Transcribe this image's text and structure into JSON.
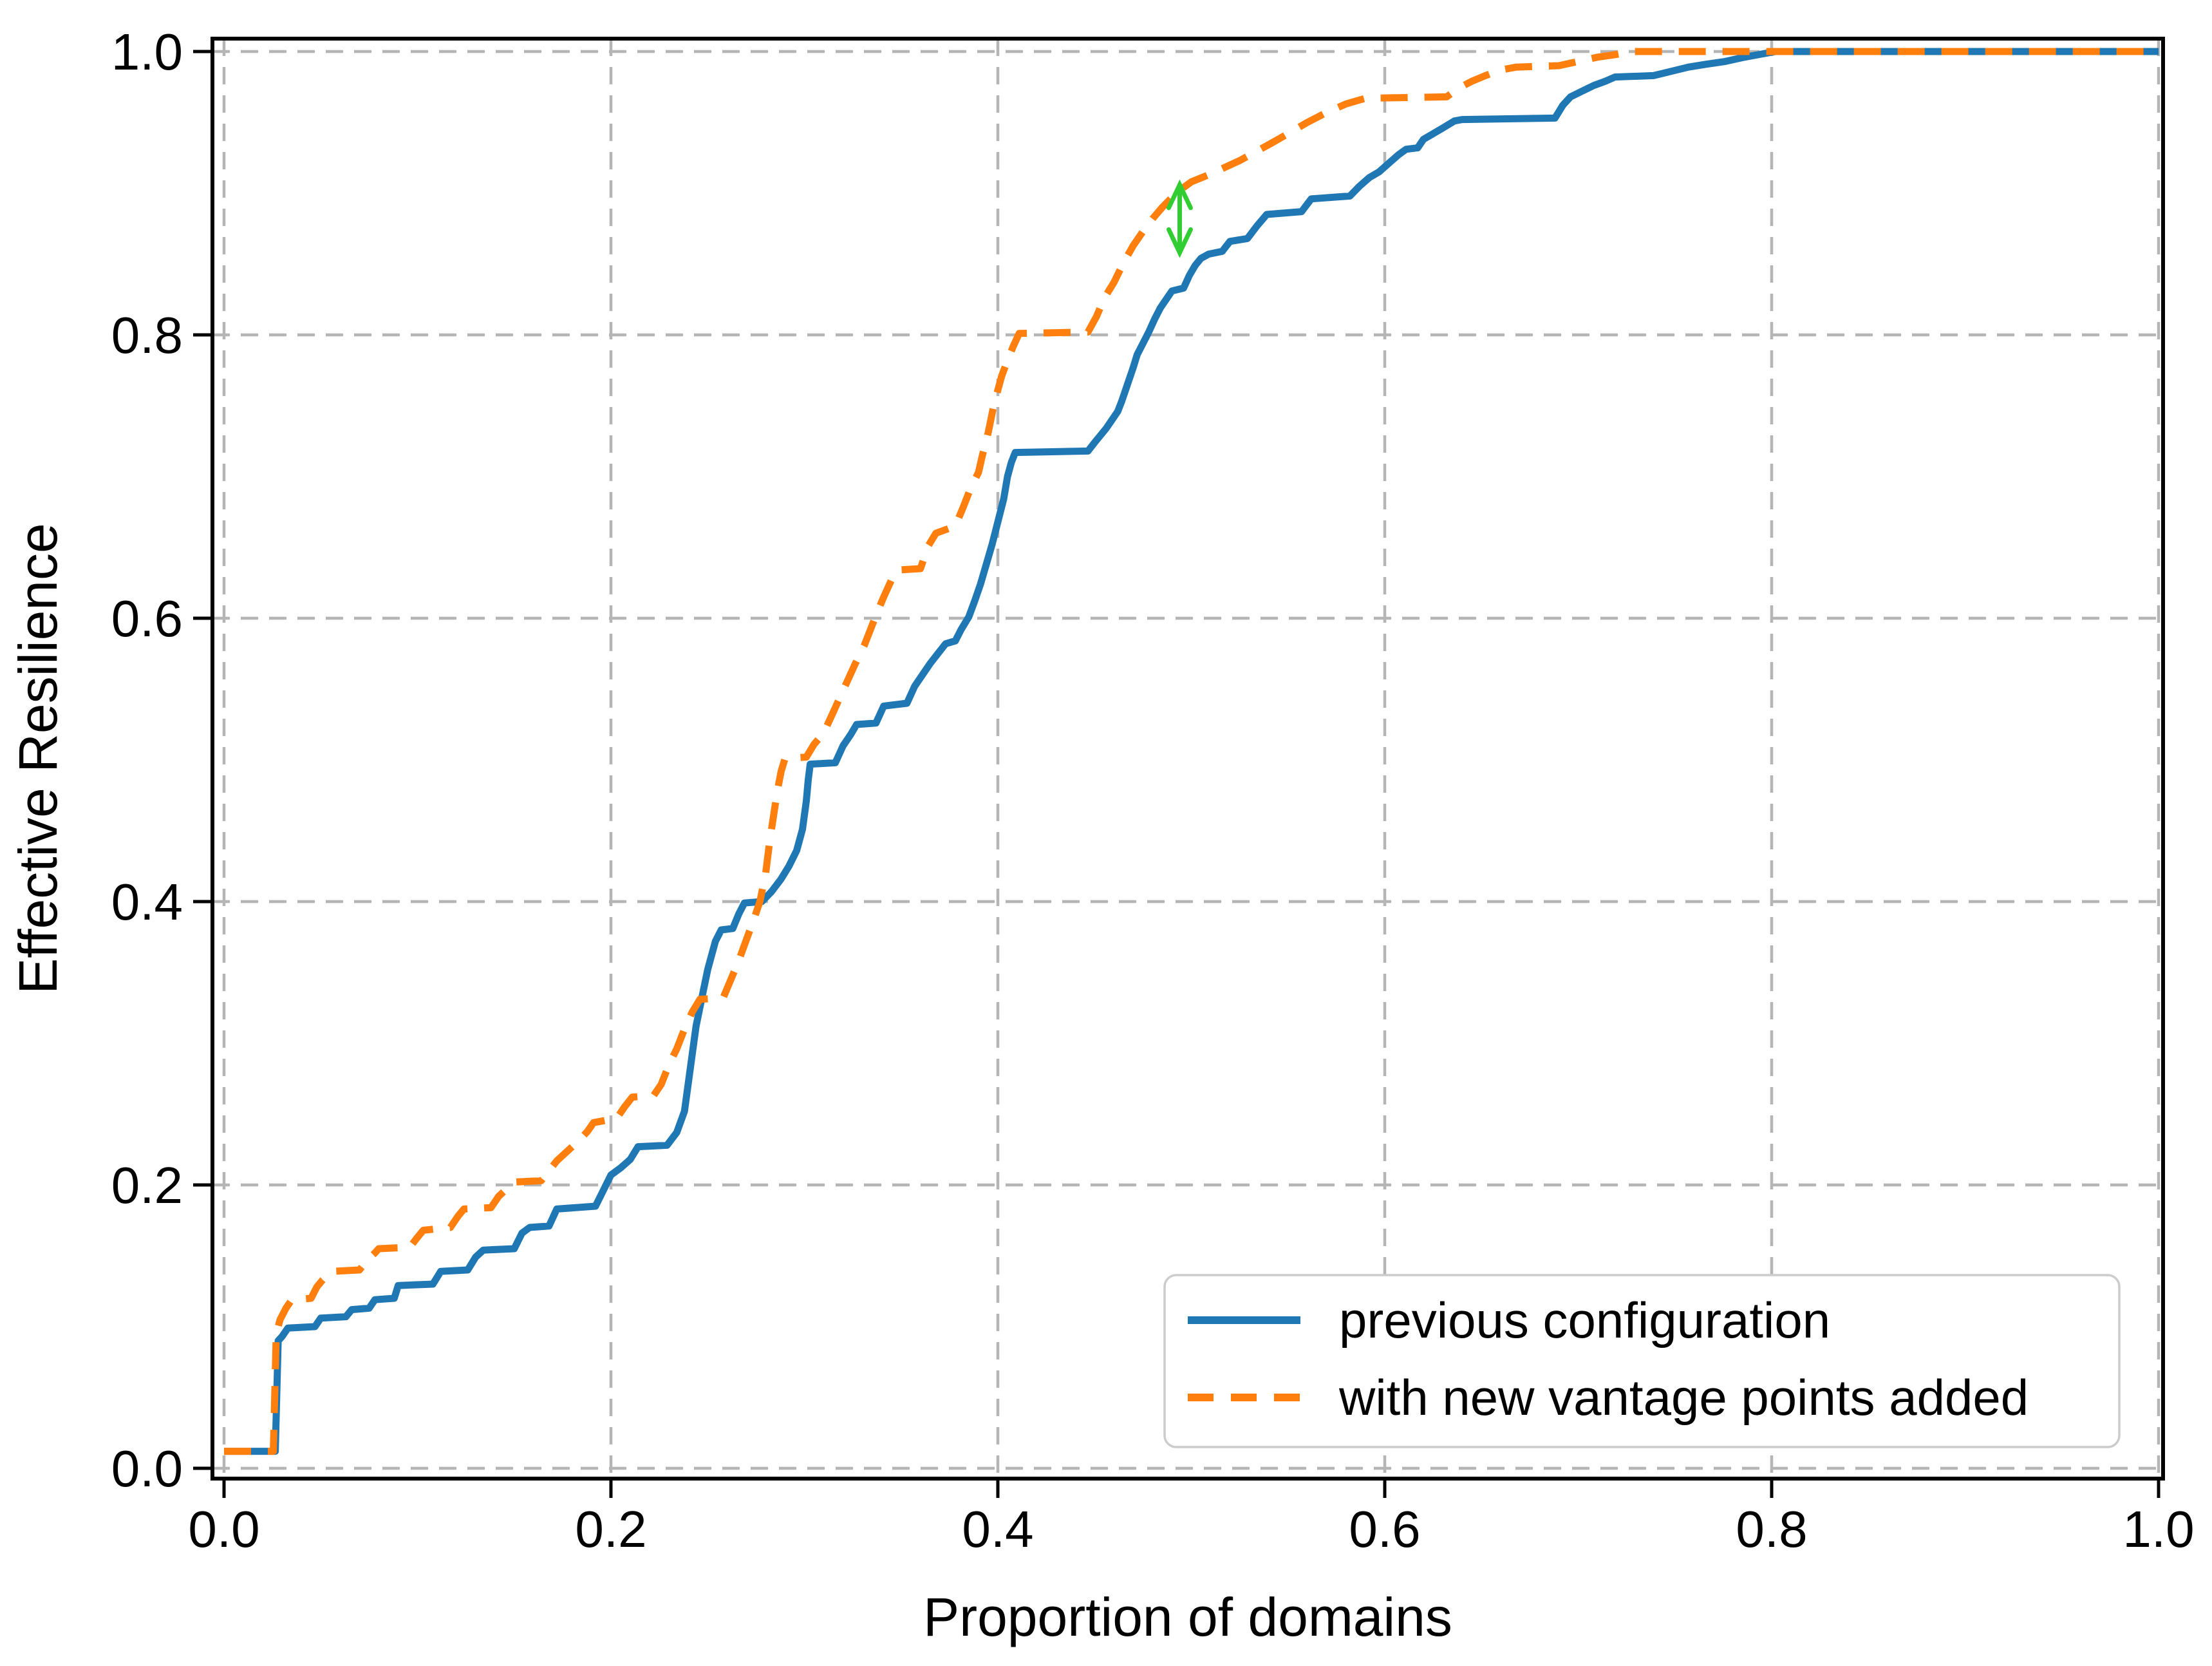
{
  "chart_data": {
    "type": "line",
    "subtype": "ecdf-step",
    "title": "",
    "xlabel": "Proportion of domains",
    "ylabel": "Effective Resilience",
    "xlim": [
      0.0,
      1.0
    ],
    "ylim": [
      0.0,
      1.0
    ],
    "x_ticks": [
      0.0,
      0.2,
      0.4,
      0.6,
      0.8,
      1.0
    ],
    "x_tick_labels": [
      "0.0",
      "0.2",
      "0.4",
      "0.6",
      "0.8",
      "1.0"
    ],
    "y_ticks": [
      0.0,
      0.2,
      0.4,
      0.6,
      0.8,
      1.0
    ],
    "y_tick_labels": [
      "0.0",
      "0.2",
      "0.4",
      "0.6",
      "0.8",
      "1.0"
    ],
    "grid": {
      "visible": true,
      "style": "dashed",
      "color": "#b5b5b5"
    },
    "background_color": "#ffffff",
    "spine_color": "#000000",
    "legend": {
      "position": "lower right",
      "background": "#ffffff",
      "border_color": "#cccccc",
      "items": [
        {
          "label": "previous configuration",
          "color": "#1f77b4",
          "line_style": "solid"
        },
        {
          "label": "with new vantage points added",
          "color": "#ff7f0e",
          "line_style": "dashed"
        }
      ]
    },
    "annotation": {
      "type": "vertical-double-arrow",
      "color": "#32cd32",
      "x": 0.494,
      "y_from": 0.858,
      "y_to": 0.906
    },
    "series": [
      {
        "name": "previous configuration",
        "color": "#1f77b4",
        "line_style": "solid",
        "points": [
          [
            0.0,
            0.012
          ],
          [
            0.0265,
            0.012
          ],
          [
            0.028,
            0.09
          ],
          [
            0.03,
            0.093
          ],
          [
            0.033,
            0.099
          ],
          [
            0.047,
            0.1
          ],
          [
            0.05,
            0.106
          ],
          [
            0.063,
            0.107
          ],
          [
            0.066,
            0.112
          ],
          [
            0.075,
            0.113
          ],
          [
            0.078,
            0.119
          ],
          [
            0.088,
            0.12
          ],
          [
            0.09,
            0.129
          ],
          [
            0.108,
            0.13
          ],
          [
            0.112,
            0.139
          ],
          [
            0.126,
            0.14
          ],
          [
            0.13,
            0.149
          ],
          [
            0.134,
            0.154
          ],
          [
            0.15,
            0.155
          ],
          [
            0.154,
            0.166
          ],
          [
            0.158,
            0.17
          ],
          [
            0.168,
            0.171
          ],
          [
            0.172,
            0.183
          ],
          [
            0.192,
            0.185
          ],
          [
            0.196,
            0.196
          ],
          [
            0.2,
            0.207
          ],
          [
            0.205,
            0.212
          ],
          [
            0.21,
            0.218
          ],
          [
            0.214,
            0.227
          ],
          [
            0.229,
            0.228
          ],
          [
            0.234,
            0.237
          ],
          [
            0.238,
            0.252
          ],
          [
            0.241,
            0.282
          ],
          [
            0.244,
            0.312
          ],
          [
            0.247,
            0.332
          ],
          [
            0.25,
            0.352
          ],
          [
            0.254,
            0.372
          ],
          [
            0.257,
            0.38
          ],
          [
            0.263,
            0.381
          ],
          [
            0.266,
            0.391
          ],
          [
            0.269,
            0.399
          ],
          [
            0.278,
            0.4
          ],
          [
            0.283,
            0.407
          ],
          [
            0.288,
            0.416
          ],
          [
            0.292,
            0.425
          ],
          [
            0.296,
            0.436
          ],
          [
            0.299,
            0.451
          ],
          [
            0.301,
            0.471
          ],
          [
            0.302,
            0.486
          ],
          [
            0.303,
            0.497
          ],
          [
            0.316,
            0.498
          ],
          [
            0.32,
            0.51
          ],
          [
            0.324,
            0.518
          ],
          [
            0.327,
            0.525
          ],
          [
            0.337,
            0.526
          ],
          [
            0.341,
            0.538
          ],
          [
            0.353,
            0.54
          ],
          [
            0.357,
            0.552
          ],
          [
            0.361,
            0.56
          ],
          [
            0.365,
            0.568
          ],
          [
            0.369,
            0.575
          ],
          [
            0.373,
            0.582
          ],
          [
            0.378,
            0.584
          ],
          [
            0.381,
            0.592
          ],
          [
            0.385,
            0.601
          ],
          [
            0.388,
            0.612
          ],
          [
            0.391,
            0.624
          ],
          [
            0.394,
            0.638
          ],
          [
            0.397,
            0.652
          ],
          [
            0.4,
            0.668
          ],
          [
            0.403,
            0.684
          ],
          [
            0.405,
            0.7
          ],
          [
            0.407,
            0.71
          ],
          [
            0.409,
            0.717
          ],
          [
            0.4466,
            0.718
          ],
          [
            0.45,
            0.724
          ],
          [
            0.453,
            0.729
          ],
          [
            0.456,
            0.734
          ],
          [
            0.459,
            0.74
          ],
          [
            0.462,
            0.746
          ],
          [
            0.464,
            0.753
          ],
          [
            0.466,
            0.761
          ],
          [
            0.468,
            0.769
          ],
          [
            0.47,
            0.777
          ],
          [
            0.472,
            0.786
          ],
          [
            0.475,
            0.794
          ],
          [
            0.478,
            0.802
          ],
          [
            0.481,
            0.811
          ],
          [
            0.484,
            0.819
          ],
          [
            0.487,
            0.825
          ],
          [
            0.49,
            0.831
          ],
          [
            0.496,
            0.833
          ],
          [
            0.499,
            0.842
          ],
          [
            0.502,
            0.849
          ],
          [
            0.505,
            0.854
          ],
          [
            0.509,
            0.857
          ],
          [
            0.516,
            0.859
          ],
          [
            0.52,
            0.866
          ],
          [
            0.529,
            0.868
          ],
          [
            0.534,
            0.877
          ],
          [
            0.539,
            0.885
          ],
          [
            0.557,
            0.887
          ],
          [
            0.562,
            0.896
          ],
          [
            0.582,
            0.898
          ],
          [
            0.587,
            0.905
          ],
          [
            0.592,
            0.911
          ],
          [
            0.597,
            0.915
          ],
          [
            0.602,
            0.921
          ],
          [
            0.607,
            0.927
          ],
          [
            0.611,
            0.931
          ],
          [
            0.617,
            0.932
          ],
          [
            0.62,
            0.938
          ],
          [
            0.625,
            0.942
          ],
          [
            0.63,
            0.946
          ],
          [
            0.636,
            0.951
          ],
          [
            0.64,
            0.952
          ],
          [
            0.688,
            0.953
          ],
          [
            0.692,
            0.962
          ],
          [
            0.696,
            0.968
          ],
          [
            0.702,
            0.972
          ],
          [
            0.708,
            0.976
          ],
          [
            0.714,
            0.979
          ],
          [
            0.719,
            0.982
          ],
          [
            0.739,
            0.983
          ],
          [
            0.748,
            0.986
          ],
          [
            0.757,
            0.989
          ],
          [
            0.766,
            0.991
          ],
          [
            0.776,
            0.993
          ],
          [
            0.786,
            0.996
          ],
          [
            0.794,
            0.998
          ],
          [
            0.802,
            1.0
          ],
          [
            1.0,
            1.0
          ]
        ]
      },
      {
        "name": "with new vantage points added",
        "color": "#ff7f0e",
        "line_style": "dashed",
        "points": [
          [
            0.0,
            0.012
          ],
          [
            0.0255,
            0.012
          ],
          [
            0.027,
            0.095
          ],
          [
            0.029,
            0.105
          ],
          [
            0.032,
            0.113
          ],
          [
            0.035,
            0.119
          ],
          [
            0.045,
            0.12
          ],
          [
            0.048,
            0.128
          ],
          [
            0.051,
            0.133
          ],
          [
            0.056,
            0.139
          ],
          [
            0.07,
            0.14
          ],
          [
            0.074,
            0.147
          ],
          [
            0.078,
            0.152
          ],
          [
            0.08,
            0.155
          ],
          [
            0.096,
            0.156
          ],
          [
            0.1,
            0.163
          ],
          [
            0.103,
            0.168
          ],
          [
            0.117,
            0.17
          ],
          [
            0.121,
            0.178
          ],
          [
            0.124,
            0.183
          ],
          [
            0.138,
            0.184
          ],
          [
            0.142,
            0.192
          ],
          [
            0.146,
            0.197
          ],
          [
            0.15,
            0.202
          ],
          [
            0.164,
            0.203
          ],
          [
            0.168,
            0.21
          ],
          [
            0.172,
            0.217
          ],
          [
            0.176,
            0.222
          ],
          [
            0.18,
            0.227
          ],
          [
            0.184,
            0.232
          ],
          [
            0.188,
            0.238
          ],
          [
            0.191,
            0.244
          ],
          [
            0.203,
            0.247
          ],
          [
            0.207,
            0.255
          ],
          [
            0.211,
            0.262
          ],
          [
            0.222,
            0.263
          ],
          [
            0.226,
            0.271
          ],
          [
            0.23,
            0.285
          ],
          [
            0.234,
            0.296
          ],
          [
            0.238,
            0.31
          ],
          [
            0.242,
            0.322
          ],
          [
            0.246,
            0.331
          ],
          [
            0.258,
            0.332
          ],
          [
            0.262,
            0.345
          ],
          [
            0.266,
            0.358
          ],
          [
            0.27,
            0.373
          ],
          [
            0.274,
            0.388
          ],
          [
            0.277,
            0.4
          ],
          [
            0.28,
            0.42
          ],
          [
            0.282,
            0.442
          ],
          [
            0.284,
            0.46
          ],
          [
            0.286,
            0.478
          ],
          [
            0.288,
            0.492
          ],
          [
            0.29,
            0.501
          ],
          [
            0.301,
            0.502
          ],
          [
            0.305,
            0.511
          ],
          [
            0.31,
            0.519
          ],
          [
            0.316,
            0.537
          ],
          [
            0.321,
            0.552
          ],
          [
            0.326,
            0.567
          ],
          [
            0.331,
            0.581
          ],
          [
            0.337,
            0.602
          ],
          [
            0.341,
            0.615
          ],
          [
            0.345,
            0.627
          ],
          [
            0.348,
            0.634
          ],
          [
            0.36,
            0.635
          ],
          [
            0.364,
            0.651
          ],
          [
            0.368,
            0.66
          ],
          [
            0.378,
            0.665
          ],
          [
            0.382,
            0.678
          ],
          [
            0.386,
            0.692
          ],
          [
            0.39,
            0.703
          ],
          [
            0.392,
            0.715
          ],
          [
            0.395,
            0.731
          ],
          [
            0.398,
            0.751
          ],
          [
            0.402,
            0.771
          ],
          [
            0.405,
            0.782
          ],
          [
            0.408,
            0.792
          ],
          [
            0.411,
            0.801
          ],
          [
            0.4466,
            0.802
          ],
          [
            0.451,
            0.813
          ],
          [
            0.455,
            0.826
          ],
          [
            0.46,
            0.837
          ],
          [
            0.465,
            0.851
          ],
          [
            0.47,
            0.863
          ],
          [
            0.475,
            0.873
          ],
          [
            0.48,
            0.882
          ],
          [
            0.485,
            0.89
          ],
          [
            0.49,
            0.897
          ],
          [
            0.495,
            0.903
          ],
          [
            0.5,
            0.908
          ],
          [
            0.509,
            0.913
          ],
          [
            0.517,
            0.918
          ],
          [
            0.525,
            0.923
          ],
          [
            0.533,
            0.929
          ],
          [
            0.541,
            0.935
          ],
          [
            0.55,
            0.942
          ],
          [
            0.56,
            0.95
          ],
          [
            0.57,
            0.957
          ],
          [
            0.58,
            0.963
          ],
          [
            0.59,
            0.967
          ],
          [
            0.632,
            0.968
          ],
          [
            0.638,
            0.974
          ],
          [
            0.645,
            0.979
          ],
          [
            0.652,
            0.983
          ],
          [
            0.66,
            0.987
          ],
          [
            0.668,
            0.989
          ],
          [
            0.69,
            0.99
          ],
          [
            0.7,
            0.993
          ],
          [
            0.71,
            0.996
          ],
          [
            0.72,
            0.998
          ],
          [
            0.728,
            1.0
          ],
          [
            1.0,
            1.0
          ]
        ]
      }
    ]
  }
}
